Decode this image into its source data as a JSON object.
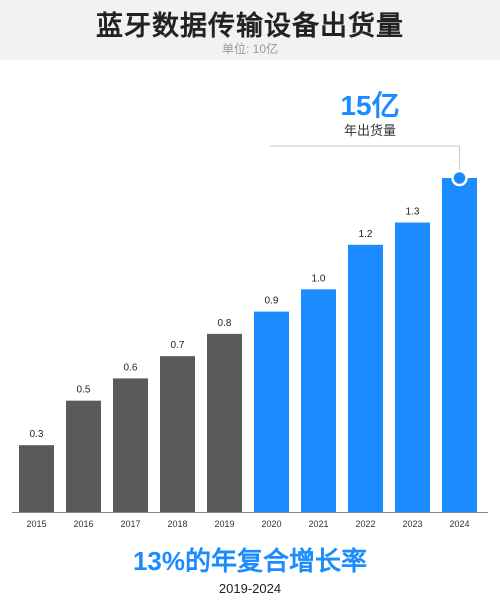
{
  "header": {
    "title": "蓝牙数据传输设备出货量",
    "subtitle": "单位: 10亿"
  },
  "callout": {
    "value": "15亿",
    "label": "年出货量"
  },
  "footer": {
    "cagr": "13%的年复合增长率",
    "range": "2019-2024"
  },
  "colors": {
    "historical": "#5a5a5a",
    "forecast": "#1a8cff",
    "baseline": "#888888",
    "leader": "#c9c9c9"
  },
  "chart_data": {
    "type": "bar",
    "title": "蓝牙数据传输设备出货量",
    "subtitle": "单位: 10亿",
    "categories": [
      "2015",
      "2016",
      "2017",
      "2018",
      "2019",
      "2020",
      "2021",
      "2022",
      "2023",
      "2024"
    ],
    "values": [
      0.3,
      0.5,
      0.6,
      0.7,
      0.8,
      0.9,
      1.0,
      1.2,
      1.3,
      1.5
    ],
    "data_labels": [
      "0.3",
      "0.5",
      "0.6",
      "0.7",
      "0.8",
      "0.9",
      "1.0",
      "1.2",
      "1.3",
      ""
    ],
    "forecast_from_index": 5,
    "ylim": [
      0,
      1.5
    ],
    "grid": false,
    "xlabel": "",
    "ylabel": ""
  }
}
